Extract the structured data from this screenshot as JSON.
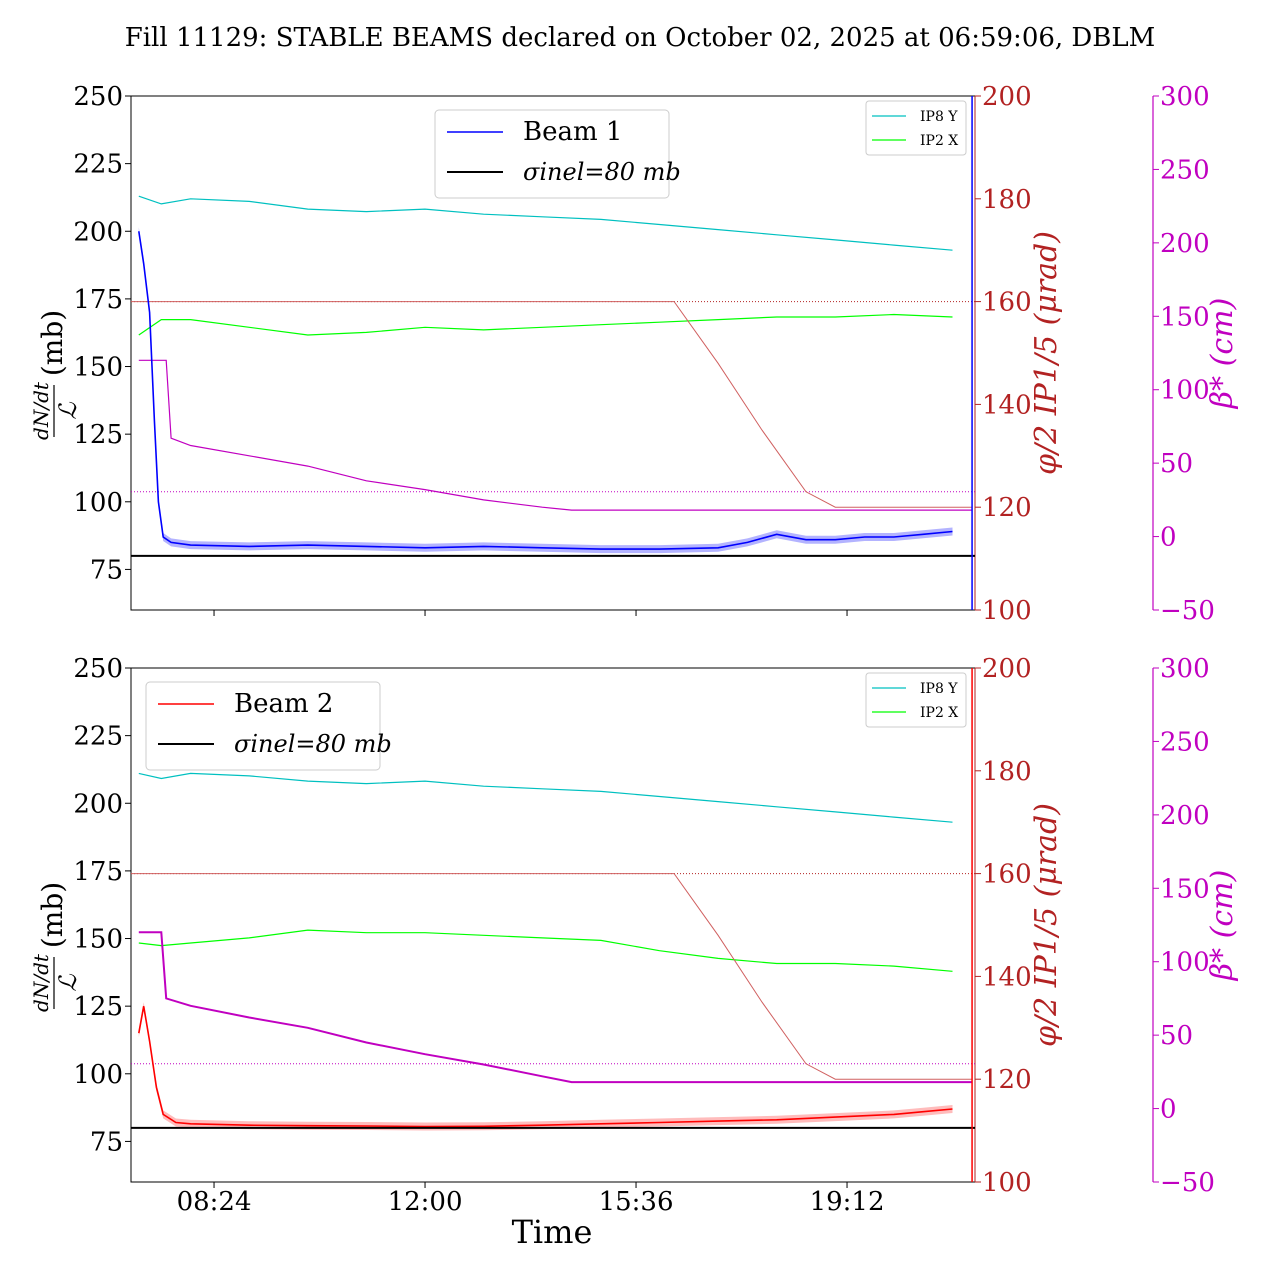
{
  "title": "Fill 11129: STABLE BEAMS declared on October 02, 2025 at 06:59:06, DBLM",
  "xlabel": "Time",
  "x_tick_labels": [
    "08:24",
    "12:00",
    "15:36",
    "19:12"
  ],
  "colors": {
    "beam1": "#0000ff",
    "beam1_band": "#8080ff",
    "beam2": "#ff0000",
    "beam2_band": "#ff9090",
    "sigma": "#000000",
    "ip8y": "#00c0c0",
    "ip2x": "#00ff00",
    "angle": "#b22222",
    "beta": "#c000c0"
  },
  "chart_data": [
    {
      "type": "line",
      "panel": "top",
      "x_range": [
        "06:59",
        "21:23"
      ],
      "ylabel": "dN/dt / L (mb)",
      "ylim": [
        60,
        250
      ],
      "y_ticks": [
        75,
        100,
        125,
        150,
        175,
        200,
        225,
        250
      ],
      "right_axis_1": {
        "label": "φ/2 IP1/5 (μrad)",
        "ylim": [
          100,
          200
        ],
        "ticks": [
          100,
          120,
          140,
          160,
          180,
          200
        ]
      },
      "right_axis_2": {
        "label": "β* (cm)",
        "ylim": [
          -50,
          300
        ],
        "ticks": [
          -50,
          0,
          50,
          100,
          150,
          200,
          250,
          300
        ]
      },
      "legend_main": {
        "placement": "top-center",
        "entries": [
          "Beam 1",
          "σinel=80 mb"
        ]
      },
      "legend_small": {
        "placement": "top-right",
        "entries": [
          "IP8 Y",
          "IP2 X"
        ]
      },
      "series": [
        {
          "name": "Beam 1",
          "axis": "left",
          "points": [
            [
              "07:07",
              200
            ],
            [
              "07:12",
              188
            ],
            [
              "07:18",
              170
            ],
            [
              "07:23",
              130
            ],
            [
              "07:27",
              100
            ],
            [
              "07:32",
              87
            ],
            [
              "07:40",
              85
            ],
            [
              "08:00",
              84
            ],
            [
              "09:00",
              83.5
            ],
            [
              "10:00",
              84
            ],
            [
              "11:00",
              83.5
            ],
            [
              "12:00",
              83
            ],
            [
              "13:00",
              83.5
            ],
            [
              "14:00",
              83
            ],
            [
              "15:00",
              82.5
            ],
            [
              "16:00",
              82.5
            ],
            [
              "17:00",
              83
            ],
            [
              "17:30",
              85
            ],
            [
              "18:00",
              88
            ],
            [
              "18:30",
              86
            ],
            [
              "19:00",
              86
            ],
            [
              "19:30",
              87
            ],
            [
              "20:00",
              87
            ],
            [
              "20:30",
              88
            ],
            [
              "21:00",
              89
            ]
          ]
        },
        {
          "name": "σinel=80 mb",
          "axis": "left",
          "points": [
            [
              "06:59",
              80
            ],
            [
              "21:23",
              80
            ]
          ]
        },
        {
          "name": "IP8 Y",
          "axis": "angle",
          "points": [
            [
              "07:07",
              180.5
            ],
            [
              "07:30",
              179
            ],
            [
              "08:00",
              180
            ],
            [
              "09:00",
              179.5
            ],
            [
              "10:00",
              178
            ],
            [
              "11:00",
              177.5
            ],
            [
              "12:00",
              178
            ],
            [
              "13:00",
              177
            ],
            [
              "14:00",
              176.5
            ],
            [
              "15:00",
              176
            ],
            [
              "16:00",
              175
            ],
            [
              "17:00",
              174
            ],
            [
              "18:00",
              173
            ],
            [
              "19:00",
              172
            ],
            [
              "20:00",
              171
            ],
            [
              "21:00",
              170
            ]
          ]
        },
        {
          "name": "IP2 X",
          "axis": "angle",
          "points": [
            [
              "07:07",
              153.5
            ],
            [
              "07:30",
              156.5
            ],
            [
              "08:00",
              156.5
            ],
            [
              "09:00",
              155
            ],
            [
              "10:00",
              153.5
            ],
            [
              "11:00",
              154
            ],
            [
              "12:00",
              155
            ],
            [
              "13:00",
              154.5
            ],
            [
              "14:00",
              155
            ],
            [
              "15:00",
              155.5
            ],
            [
              "16:00",
              156
            ],
            [
              "17:00",
              156.5
            ],
            [
              "18:00",
              157
            ],
            [
              "19:00",
              157
            ],
            [
              "20:00",
              157.5
            ],
            [
              "21:00",
              157
            ]
          ]
        },
        {
          "name": "φ/2 IP1/5",
          "axis": "angle",
          "points": [
            [
              "06:59",
              160
            ],
            [
              "16:15",
              160
            ],
            [
              "17:00",
              148
            ],
            [
              "17:45",
              135
            ],
            [
              "18:30",
              123
            ],
            [
              "19:00",
              120
            ],
            [
              "21:20",
              120
            ]
          ]
        },
        {
          "name": "β*",
          "axis": "beta",
          "points": [
            [
              "07:07",
              120
            ],
            [
              "07:35",
              120
            ],
            [
              "07:40",
              67
            ],
            [
              "08:00",
              62
            ],
            [
              "09:00",
              55
            ],
            [
              "10:00",
              48
            ],
            [
              "11:00",
              38
            ],
            [
              "12:00",
              32
            ],
            [
              "13:00",
              25
            ],
            [
              "14:00",
              20
            ],
            [
              "14:30",
              18
            ],
            [
              "21:20",
              18
            ]
          ]
        }
      ]
    },
    {
      "type": "line",
      "panel": "bottom",
      "x_range": [
        "06:59",
        "21:23"
      ],
      "ylabel": "dN/dt / L (mb)",
      "ylim": [
        60,
        250
      ],
      "y_ticks": [
        75,
        100,
        125,
        150,
        175,
        200,
        225,
        250
      ],
      "right_axis_1": {
        "label": "φ/2 IP1/5 (μrad)",
        "ylim": [
          100,
          200
        ],
        "ticks": [
          100,
          120,
          140,
          160,
          180,
          200
        ]
      },
      "right_axis_2": {
        "label": "β* (cm)",
        "ylim": [
          -50,
          300
        ],
        "ticks": [
          -50,
          0,
          50,
          100,
          150,
          200,
          250,
          300
        ]
      },
      "legend_main": {
        "placement": "top-left",
        "entries": [
          "Beam 2",
          "σinel=80 mb"
        ]
      },
      "legend_small": {
        "placement": "top-right",
        "entries": [
          "IP8 Y",
          "IP2 X"
        ]
      },
      "series": [
        {
          "name": "Beam 2",
          "axis": "left",
          "points": [
            [
              "07:07",
              115
            ],
            [
              "07:12",
              125
            ],
            [
              "07:18",
              112
            ],
            [
              "07:25",
              95
            ],
            [
              "07:32",
              85
            ],
            [
              "07:45",
              82
            ],
            [
              "08:00",
              81.5
            ],
            [
              "09:00",
              81
            ],
            [
              "10:00",
              80.8
            ],
            [
              "11:00",
              80.7
            ],
            [
              "12:00",
              80.5
            ],
            [
              "13:00",
              80.6
            ],
            [
              "14:00",
              81
            ],
            [
              "15:00",
              81.5
            ],
            [
              "16:00",
              82
            ],
            [
              "17:00",
              82.5
            ],
            [
              "18:00",
              83
            ],
            [
              "19:00",
              84
            ],
            [
              "20:00",
              85
            ],
            [
              "20:30",
              86
            ],
            [
              "21:00",
              87
            ]
          ]
        },
        {
          "name": "σinel=80 mb",
          "axis": "left",
          "points": [
            [
              "06:59",
              80
            ],
            [
              "21:23",
              80
            ]
          ]
        },
        {
          "name": "IP8 Y",
          "axis": "angle",
          "points": [
            [
              "07:07",
              179.5
            ],
            [
              "07:30",
              178.5
            ],
            [
              "08:00",
              179.5
            ],
            [
              "09:00",
              179
            ],
            [
              "10:00",
              178
            ],
            [
              "11:00",
              177.5
            ],
            [
              "12:00",
              178
            ],
            [
              "13:00",
              177
            ],
            [
              "14:00",
              176.5
            ],
            [
              "15:00",
              176
            ],
            [
              "16:00",
              175
            ],
            [
              "17:00",
              174
            ],
            [
              "18:00",
              173
            ],
            [
              "19:00",
              172
            ],
            [
              "20:00",
              171
            ],
            [
              "21:00",
              170
            ]
          ]
        },
        {
          "name": "IP2 X",
          "axis": "angle",
          "points": [
            [
              "07:07",
              146.5
            ],
            [
              "07:30",
              146
            ],
            [
              "08:00",
              146.5
            ],
            [
              "09:00",
              147.5
            ],
            [
              "10:00",
              149
            ],
            [
              "11:00",
              148.5
            ],
            [
              "12:00",
              148.5
            ],
            [
              "13:00",
              148
            ],
            [
              "14:00",
              147.5
            ],
            [
              "15:00",
              147
            ],
            [
              "16:00",
              145
            ],
            [
              "17:00",
              143.5
            ],
            [
              "18:00",
              142.5
            ],
            [
              "19:00",
              142.5
            ],
            [
              "20:00",
              142
            ],
            [
              "21:00",
              141
            ]
          ]
        },
        {
          "name": "φ/2 IP1/5",
          "axis": "angle",
          "points": [
            [
              "06:59",
              160
            ],
            [
              "16:15",
              160
            ],
            [
              "17:00",
              148
            ],
            [
              "17:45",
              135
            ],
            [
              "18:30",
              123
            ],
            [
              "19:00",
              120
            ],
            [
              "21:20",
              120
            ]
          ]
        },
        {
          "name": "β*",
          "axis": "beta",
          "points": [
            [
              "07:07",
              120
            ],
            [
              "07:30",
              120
            ],
            [
              "07:35",
              75
            ],
            [
              "08:00",
              70
            ],
            [
              "09:00",
              62
            ],
            [
              "10:00",
              55
            ],
            [
              "11:00",
              45
            ],
            [
              "12:00",
              37
            ],
            [
              "13:00",
              30
            ],
            [
              "14:00",
              22
            ],
            [
              "14:30",
              18
            ],
            [
              "21:20",
              18
            ]
          ]
        }
      ]
    }
  ]
}
